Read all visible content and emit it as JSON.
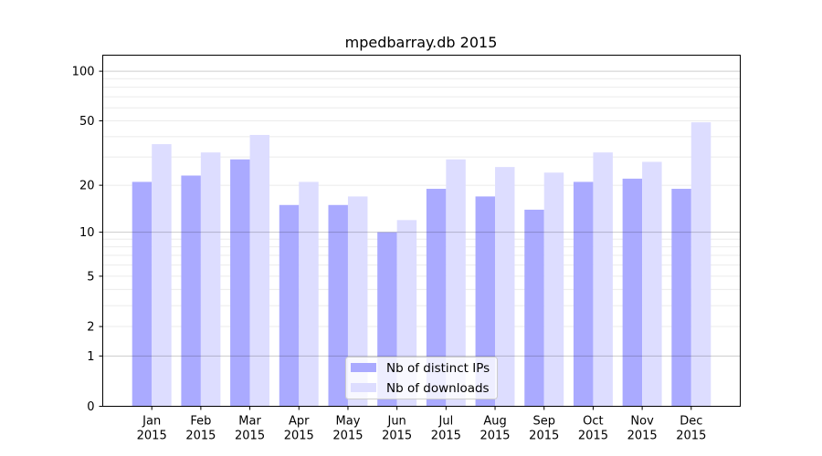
{
  "chart_data": {
    "type": "bar",
    "title": "mpedbarray.db 2015",
    "xlabel": "",
    "ylabel": "",
    "yscale": "log(1+y)",
    "ylim": [
      0,
      125
    ],
    "yticks": [
      0,
      1,
      2,
      5,
      10,
      20,
      50,
      100
    ],
    "grid": true,
    "legend_position": "bottom-center",
    "categories": [
      "Jan\n2015",
      "Feb\n2015",
      "Mar\n2015",
      "Apr\n2015",
      "May\n2015",
      "Jun\n2015",
      "Jul\n2015",
      "Aug\n2015",
      "Sep\n2015",
      "Oct\n2015",
      "Nov\n2015",
      "Dec\n2015"
    ],
    "series": [
      {
        "name": "Nb of distinct IPs",
        "color": "#aaaaff",
        "values": [
          21,
          23,
          29,
          15,
          15,
          10,
          19,
          17,
          14,
          21,
          22,
          19
        ]
      },
      {
        "name": "Nb of downloads",
        "color": "#ddddff",
        "values": [
          36,
          32,
          41,
          21,
          17,
          12,
          29,
          26,
          24,
          32,
          28,
          49
        ]
      }
    ]
  }
}
